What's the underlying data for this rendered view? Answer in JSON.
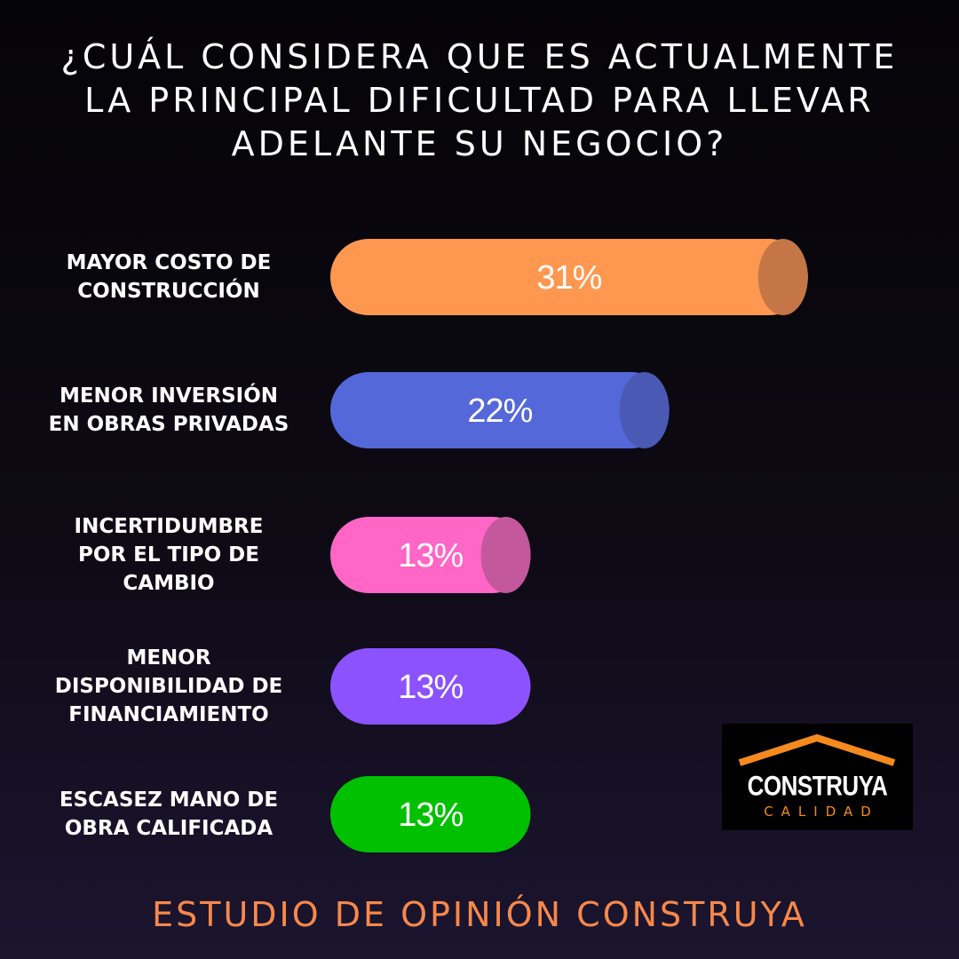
{
  "title_lines": [
    "¿CUÁL CONSIDERA QUE ES ACTUALMENTE",
    "LA PRINCIPAL DIFICULTAD PARA LLEVAR",
    "ADELANTE SU NEGOCIO?"
  ],
  "footer": "ESTUDIO DE OPINIÓN CONSTRUYA",
  "logo": {
    "name": "CONSTRUYA",
    "tagline": "CALIDAD",
    "accent": "#f68a1f"
  },
  "chart_data": {
    "type": "bar",
    "orientation": "horizontal",
    "title": "¿CUÁL CONSIDERA QUE ES ACTUALMENTE LA PRINCIPAL DIFICULTAD PARA LLEVAR ADELANTE SU NEGOCIO?",
    "unit": "%",
    "categories": [
      "MAYOR COSTO DE CONSTRUCCIÓN",
      "MENOR INVERSIÓN EN OBRAS PRIVADAS",
      "INCERTIDUMBRE POR EL TIPO DE CAMBIO",
      "MENOR DISPONIBILIDAD DE FINANCIAMIENTO",
      "ESCASEZ MANO DE OBRA CALIFICADA"
    ],
    "category_label_lines": [
      [
        "MAYOR COSTO DE",
        "CONSTRUCCIÓN"
      ],
      [
        "MENOR INVERSIÓN",
        "EN OBRAS PRIVADAS"
      ],
      [
        "INCERTIDUMBRE",
        "POR EL TIPO DE",
        "CAMBIO"
      ],
      [
        "MENOR",
        "DISPONIBILIDAD DE",
        "FINANCIAMIENTO"
      ],
      [
        "ESCASEZ MANO DE",
        "OBRA CALIFICADA"
      ]
    ],
    "values": [
      31,
      22,
      13,
      13,
      13
    ],
    "value_labels": [
      "31%",
      "22%",
      "13%",
      "13%",
      "13%"
    ],
    "colors": [
      "#fe9851",
      "#5468d9",
      "#ff66c5",
      "#8c52ff",
      "#00c000"
    ],
    "end_cap_colors": [
      "#c47646",
      "#4a59b3",
      "#c4589c",
      "",
      ""
    ],
    "legend": "none",
    "grid": false
  }
}
